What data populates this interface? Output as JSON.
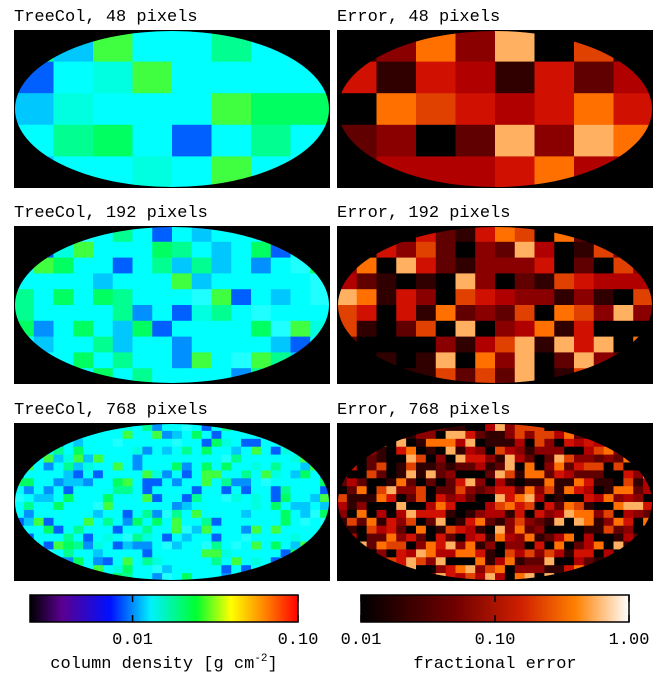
{
  "panels": [
    {
      "title": "TreeCol, 48 pixels"
    },
    {
      "title": "Error, 48 pixels"
    },
    {
      "title": "TreeCol, 192 pixels"
    },
    {
      "title": "Error, 192 pixels"
    },
    {
      "title": "TreeCol, 768 pixels"
    },
    {
      "title": "Error, 768 pixels"
    }
  ],
  "colorbars": [
    {
      "label": {
        "text": "column density [g cm",
        "superscript": "-2",
        "suffix": "]"
      },
      "log_scale": true,
      "xlim": [
        0.0024,
        0.1
      ],
      "xticks": [
        {
          "value": 0.01,
          "label": "0.01"
        },
        {
          "value": 0.1,
          "label": "0.10"
        }
      ]
    },
    {
      "label": {
        "text": "fractional error"
      },
      "log_scale": true,
      "xlim": [
        0.01,
        1
      ],
      "xticks": [
        {
          "value": 0.01,
          "label": "0.01"
        },
        {
          "value": 0.1,
          "label": "0.10"
        },
        {
          "value": 1,
          "label": "1.00"
        }
      ]
    }
  ]
}
